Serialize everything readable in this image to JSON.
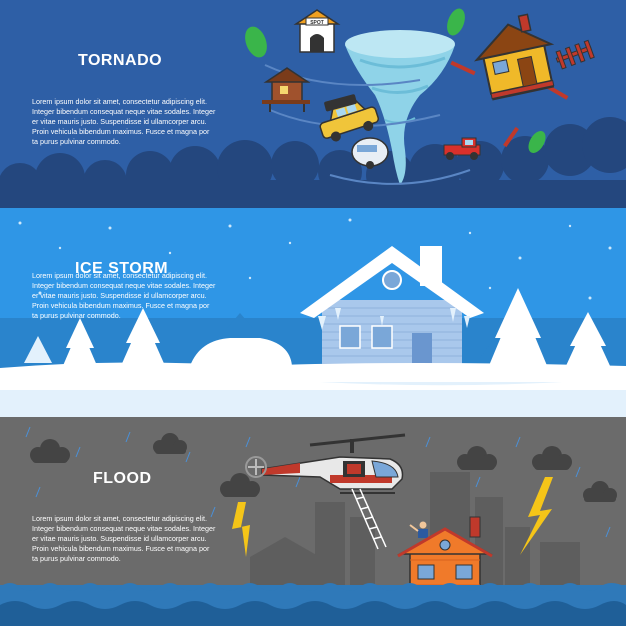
{
  "banners": {
    "tornado": {
      "title": "TORNADO",
      "paragraph": [
        "Lorem ipsum dolor sit amet, consectetur adipiscing elit.",
        "Integer bibendum consequat neque vitae sodales. Integer",
        "er vitae mauris justo. Suspendisse id ullamcorper arcu.",
        "Proin vehicula bibendum maximus. Fusce et magna por",
        "ta purus pulvinar commodo."
      ],
      "doghouse_sign": "SPOT",
      "colors": {
        "sky": "#2e5fa6",
        "clouds": "#24477e",
        "funnel": "#8fd3e8",
        "car": "#f0c53a"
      }
    },
    "ice_storm": {
      "title": "ICE STORM",
      "paragraph": [
        "Lorem ipsum dolor sit amet, consectetur adipiscing elit.",
        "Integer bibendum consequat neque vitae sodales. Integer",
        "er vitae mauris justo. Suspendisse id ullamcorper arcu.",
        "Proin vehicula bibendum maximus. Fusce et magna por",
        "ta purus pulvinar commodo."
      ],
      "colors": {
        "sky": "#2f96e6",
        "snow": "#ffffff",
        "house": "#a9c8ec"
      }
    },
    "flood": {
      "title": "FLOOD",
      "paragraph": [
        "Lorem ipsum dolor sit amet, consectetur adipiscing elit.",
        "Integer bibendum consequat neque vitae sodales. Integer",
        "er vitae mauris justo. Suspendisse id ullamcorper arcu.",
        "Proin vehicula bibendum maximus. Fusce et magna por",
        "ta purus pulvinar commodo."
      ],
      "colors": {
        "sky": "#6b6b6b",
        "water": "#2f79b9",
        "house": "#f07a2a",
        "lightning": "#f5c518"
      }
    }
  }
}
